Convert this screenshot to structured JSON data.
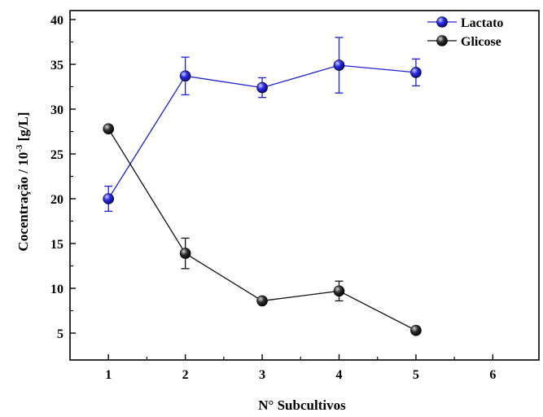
{
  "chart_data": {
    "type": "line",
    "xlabel": "N° Subcultivos",
    "ylabel_main": "Cocentração / 10",
    "ylabel_sup": "-3",
    "ylabel_unit": " [g/L]",
    "xlim": [
      0.5,
      6.6
    ],
    "ylim": [
      2,
      41
    ],
    "xticks": [
      1,
      2,
      3,
      4,
      5,
      6
    ],
    "yticks": [
      5,
      10,
      15,
      20,
      25,
      30,
      35,
      40
    ],
    "x": [
      1,
      2,
      3,
      4,
      5
    ],
    "legend_position": "top-right",
    "grid": false,
    "series": [
      {
        "name": "Lactato",
        "color": "#1f1fd6",
        "values": [
          20.0,
          33.7,
          32.4,
          34.9,
          34.1
        ],
        "errors": [
          1.4,
          2.1,
          1.1,
          3.1,
          1.5
        ]
      },
      {
        "name": "Glicose",
        "color": "#111111",
        "values": [
          27.8,
          13.9,
          8.6,
          9.7,
          5.3
        ],
        "errors": [
          0.3,
          1.7,
          0.3,
          1.1,
          0.3
        ]
      }
    ]
  }
}
